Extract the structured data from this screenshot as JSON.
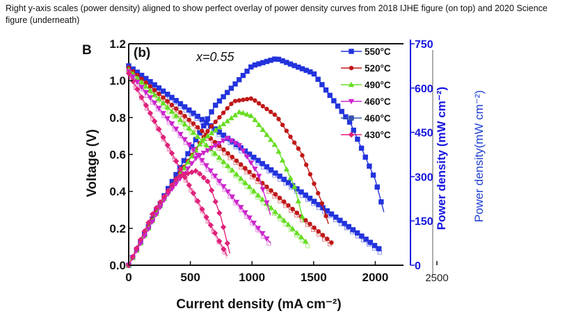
{
  "caption": "Right y-axis scales (power density) aligned to show perfect overlay of power density curves from 2018 IJHE figure (on top) and 2020 Science figure (underneath)",
  "chart_data": {
    "type": "line",
    "panel_label_left": "B",
    "panel_label": "(b)",
    "annotation": "x=0.55",
    "xlabel": "Current density (mA cm⁻²)",
    "ylabel_left": "Voltage (V)",
    "ylabel_right_outer": "Power density(mW cm⁻²)",
    "ylabel_right_inner": "Power density (mW cm⁻²)",
    "xlim": [
      0,
      2500
    ],
    "ylim_left": [
      0,
      1.2
    ],
    "ylim_right": [
      0,
      750
    ],
    "x_ticks": [
      "0",
      "500",
      "1000",
      "1500",
      "2000",
      "2500"
    ],
    "y_ticks_left": [
      "0.0",
      "0.2",
      "0.4",
      "0.6",
      "0.8",
      "1.0",
      "1.2"
    ],
    "y_ticks_right": [
      "0",
      "150",
      "300",
      "450",
      "600",
      "750"
    ],
    "series": [
      {
        "name": "550°C",
        "color": "#2233dd",
        "marker": "square",
        "voltage": [
          [
            0,
            1.08
          ],
          [
            2050,
            0.08
          ]
        ],
        "power": [
          [
            0,
            0
          ],
          [
            300,
            245
          ],
          [
            700,
            540
          ],
          [
            1000,
            675
          ],
          [
            1200,
            700
          ],
          [
            1500,
            650
          ],
          [
            1800,
            480
          ],
          [
            2000,
            290
          ],
          [
            2070,
            180
          ]
        ]
      },
      {
        "name": "520°C",
        "color": "#c01818",
        "marker": "circle",
        "voltage": [
          [
            0,
            1.07
          ],
          [
            1650,
            0.12
          ]
        ],
        "power": [
          [
            0,
            0
          ],
          [
            300,
            240
          ],
          [
            650,
            460
          ],
          [
            850,
            555
          ],
          [
            1000,
            565
          ],
          [
            1200,
            505
          ],
          [
            1400,
            380
          ],
          [
            1560,
            220
          ],
          [
            1620,
            140
          ]
        ]
      },
      {
        "name": "490°C",
        "color": "#66dd22",
        "marker": "triangle-up",
        "voltage": [
          [
            0,
            1.06
          ],
          [
            1450,
            0.12
          ]
        ],
        "power": [
          [
            0,
            0
          ],
          [
            300,
            235
          ],
          [
            600,
            425
          ],
          [
            900,
            520
          ],
          [
            1000,
            505
          ],
          [
            1200,
            400
          ],
          [
            1350,
            260
          ],
          [
            1420,
            145
          ]
        ]
      },
      {
        "name": "460°C",
        "color": "#cc22cc",
        "marker": "triangle-down",
        "voltage": [
          [
            0,
            1.05
          ],
          [
            1150,
            0.12
          ]
        ],
        "power": [
          [
            0,
            0
          ],
          [
            300,
            230
          ],
          [
            550,
            365
          ],
          [
            800,
            430
          ],
          [
            900,
            405
          ],
          [
            1050,
            310
          ],
          [
            1150,
            170
          ]
        ]
      },
      {
        "name": "460°C",
        "color": "#3355aa",
        "marker": "square",
        "voltage": [],
        "power": []
      },
      {
        "name": "430°C",
        "color": "#e0207a",
        "marker": "diamond",
        "voltage": [
          [
            0,
            1.04
          ],
          [
            800,
            0.05
          ]
        ],
        "power": [
          [
            0,
            0
          ],
          [
            200,
            180
          ],
          [
            400,
            300
          ],
          [
            550,
            320
          ],
          [
            650,
            280
          ],
          [
            750,
            160
          ],
          [
            820,
            40
          ]
        ]
      }
    ]
  }
}
